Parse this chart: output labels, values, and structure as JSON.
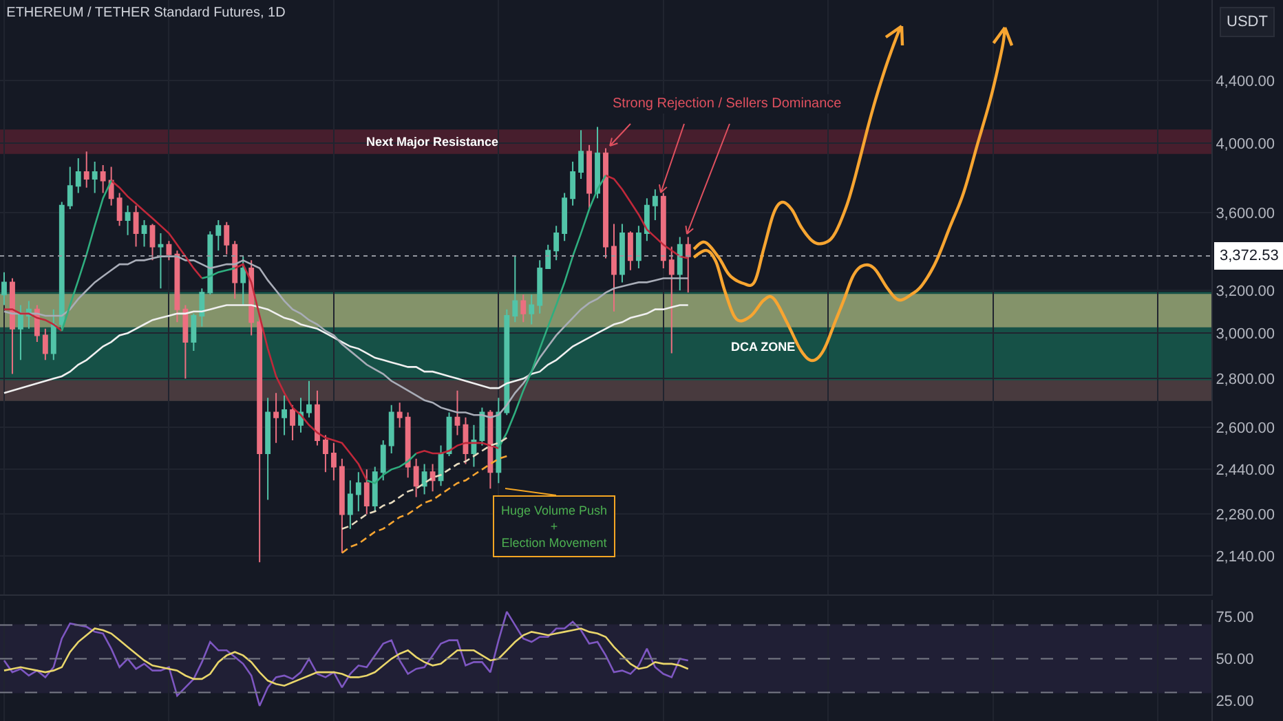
{
  "chart_data": [
    {
      "type": "candlestick",
      "title": "ETHEREUM / TETHER Standard Futures, 1D",
      "ylabel": "USDT",
      "categories": [
        null,
        null,
        null,
        null,
        null,
        null,
        null,
        null,
        null,
        null,
        null,
        null,
        null,
        null,
        null,
        null,
        null,
        null,
        null,
        null,
        null,
        null,
        null,
        null,
        null,
        null,
        null,
        null,
        null,
        null,
        null,
        null,
        null,
        null,
        null,
        null,
        null,
        null,
        null,
        null,
        null,
        null,
        null,
        null,
        null,
        null,
        null,
        null,
        null,
        null,
        null,
        null,
        null,
        null,
        null,
        null,
        null,
        null,
        null,
        null,
        null,
        null,
        null,
        null,
        null,
        null,
        null,
        null,
        null,
        null,
        null,
        null,
        null,
        null,
        null,
        null,
        null,
        null,
        null,
        null,
        null,
        null,
        null,
        null,
        null,
        null,
        null,
        null,
        null,
        null,
        null,
        null,
        null,
        null,
        null,
        null,
        null,
        null,
        null,
        null,
        null,
        null,
        null,
        null,
        null,
        null,
        null,
        null,
        null,
        null,
        null,
        null,
        null,
        null,
        null,
        null,
        null,
        null,
        null,
        null,
        null,
        null,
        null,
        null,
        null,
        null,
        null,
        null,
        null,
        null,
        null,
        null,
        null,
        null,
        null,
        null,
        null,
        null,
        null,
        null,
        null,
        null,
        null,
        null,
        null,
        null,
        null
      ],
      "ohlc": [
        [
          3180,
          3290,
          3130,
          3240
        ],
        [
          3240,
          3260,
          2820,
          3020
        ],
        [
          3020,
          3130,
          2880,
          3090
        ],
        [
          3080,
          3150,
          3020,
          3110
        ],
        [
          3110,
          3130,
          2960,
          2990
        ],
        [
          2990,
          3020,
          2880,
          2910
        ],
        [
          2910,
          3110,
          2880,
          3040
        ],
        [
          3040,
          3660,
          3020,
          3640
        ],
        [
          3640,
          3860,
          3620,
          3750
        ],
        [
          3750,
          3910,
          3710,
          3830
        ],
        [
          3830,
          3950,
          3740,
          3790
        ],
        [
          3790,
          3890,
          3710,
          3830
        ],
        [
          3830,
          3870,
          3710,
          3780
        ],
        [
          3780,
          3860,
          3640,
          3680
        ],
        [
          3680,
          3710,
          3530,
          3560
        ],
        [
          3560,
          3640,
          3480,
          3600
        ],
        [
          3600,
          3640,
          3420,
          3490
        ],
        [
          3490,
          3560,
          3420,
          3530
        ],
        [
          3530,
          3540,
          3350,
          3420
        ],
        [
          3420,
          3490,
          3210,
          3430
        ],
        [
          3430,
          3450,
          3350,
          3380
        ],
        [
          3380,
          3400,
          3050,
          3110
        ],
        [
          3110,
          3130,
          2800,
          2960
        ],
        [
          2960,
          3090,
          2920,
          3080
        ],
        [
          3080,
          3210,
          3030,
          3190
        ],
        [
          3190,
          3500,
          3180,
          3480
        ],
        [
          3480,
          3560,
          3400,
          3530
        ],
        [
          3530,
          3550,
          3380,
          3430
        ],
        [
          3430,
          3450,
          3160,
          3240
        ],
        [
          3240,
          3370,
          3130,
          3310
        ],
        [
          3310,
          3350,
          2990,
          3050
        ],
        [
          3050,
          3080,
          2120,
          2500
        ],
        [
          2500,
          2720,
          2330,
          2660
        ],
        [
          2660,
          2740,
          2540,
          2640
        ],
        [
          2640,
          2730,
          2570,
          2670
        ],
        [
          2670,
          2690,
          2550,
          2610
        ],
        [
          2610,
          2720,
          2580,
          2660
        ],
        [
          2660,
          2790,
          2640,
          2690
        ],
        [
          2690,
          2750,
          2530,
          2550
        ],
        [
          2550,
          2570,
          2430,
          2500
        ],
        [
          2500,
          2540,
          2400,
          2450
        ],
        [
          2450,
          2480,
          2150,
          2280
        ],
        [
          2280,
          2400,
          2230,
          2350
        ],
        [
          2350,
          2430,
          2290,
          2390
        ],
        [
          2390,
          2440,
          2280,
          2310
        ],
        [
          2310,
          2450,
          2290,
          2430
        ],
        [
          2430,
          2550,
          2400,
          2530
        ],
        [
          2530,
          2690,
          2500,
          2660
        ],
        [
          2660,
          2700,
          2600,
          2640
        ],
        [
          2640,
          2660,
          2410,
          2450
        ],
        [
          2450,
          2480,
          2340,
          2380
        ],
        [
          2380,
          2460,
          2350,
          2430
        ],
        [
          2430,
          2460,
          2360,
          2400
        ],
        [
          2400,
          2530,
          2380,
          2500
        ],
        [
          2500,
          2660,
          2490,
          2640
        ],
        [
          2640,
          2750,
          2570,
          2610
        ],
        [
          2610,
          2640,
          2460,
          2500
        ],
        [
          2500,
          2610,
          2450,
          2550
        ],
        [
          2550,
          2680,
          2530,
          2660
        ],
        [
          2660,
          2670,
          2370,
          2430
        ],
        [
          2430,
          2720,
          2390,
          2660
        ],
        [
          2660,
          3110,
          2650,
          3080
        ],
        [
          3080,
          3370,
          3050,
          3150
        ],
        [
          3150,
          3180,
          3050,
          3090
        ],
        [
          3090,
          3180,
          3040,
          3130
        ],
        [
          3130,
          3350,
          3090,
          3310
        ],
        [
          3310,
          3430,
          3310,
          3400
        ],
        [
          3400,
          3530,
          3350,
          3490
        ],
        [
          3490,
          3710,
          3450,
          3680
        ],
        [
          3680,
          3890,
          3640,
          3830
        ],
        [
          3830,
          4080,
          3790,
          3950
        ],
        [
          3950,
          3990,
          3620,
          3710
        ],
        [
          3710,
          4100,
          3680,
          3940
        ],
        [
          3940,
          3970,
          3360,
          3420
        ],
        [
          3420,
          3540,
          3100,
          3280
        ],
        [
          3280,
          3540,
          3240,
          3490
        ],
        [
          3490,
          3500,
          3300,
          3350
        ],
        [
          3350,
          3530,
          3310,
          3490
        ],
        [
          3490,
          3680,
          3450,
          3640
        ],
        [
          3640,
          3730,
          3560,
          3690
        ],
        [
          3690,
          3710,
          3310,
          3350
        ],
        [
          3350,
          3420,
          2910,
          3280
        ],
        [
          3280,
          3470,
          3200,
          3430
        ],
        [
          3430,
          3470,
          3190,
          3370
        ],
        null,
        null,
        null,
        null,
        null,
        null,
        null,
        null,
        null,
        null,
        null,
        null,
        null,
        null,
        null,
        null,
        null,
        null,
        null,
        null,
        null,
        null,
        null,
        null,
        null,
        null,
        null,
        null,
        null,
        null,
        null,
        null,
        null,
        null,
        null,
        null,
        null,
        null,
        null,
        null,
        null,
        null,
        null,
        null,
        null,
        null,
        null,
        null,
        null,
        null,
        null,
        null,
        null,
        null,
        null,
        null,
        null,
        null,
        null,
        null,
        null,
        null,
        null
      ],
      "colors": [
        "#52c4a8",
        "#ec6f80",
        "#52c4a8",
        "#52c4a8",
        "#ec6f80",
        "#ec6f80",
        "#52c4a8",
        "#52c4a8",
        "#52c4a8",
        "#52c4a8",
        "#ec6f80",
        "#52c4a8",
        "#ec6f80",
        "#ec6f80",
        "#ec6f80",
        "#52c4a8",
        "#ec6f80",
        "#52c4a8",
        "#ec6f80",
        "#52c4a8",
        "#ec6f80",
        "#ec6f80",
        "#ec6f80",
        "#52c4a8",
        "#52c4a8",
        "#52c4a8",
        "#52c4a8",
        "#ec6f80",
        "#ec6f80",
        "#52c4a8",
        "#ec6f80",
        "#ec6f80",
        "#52c4a8",
        "#ec6f80",
        "#52c4a8",
        "#ec6f80",
        "#52c4a8",
        "#52c4a8",
        "#ec6f80",
        "#ec6f80",
        "#ec6f80",
        "#ec6f80",
        "#52c4a8",
        "#52c4a8",
        "#ec6f80",
        "#52c4a8",
        "#52c4a8",
        "#52c4a8",
        "#ec6f80",
        "#ec6f80",
        "#ec6f80",
        "#52c4a8",
        "#ec6f80",
        "#52c4a8",
        "#52c4a8",
        "#ec6f80",
        "#ec6f80",
        "#52c4a8",
        "#52c4a8",
        "#ec6f80",
        "#52c4a8",
        "#52c4a8",
        "#52c4a8",
        "#ec6f80",
        "#52c4a8",
        "#52c4a8",
        "#52c4a8",
        "#52c4a8",
        "#52c4a8",
        "#52c4a8",
        "#52c4a8",
        "#ec6f80",
        "#52c4a8",
        "#ec6f80",
        "#ec6f80",
        "#52c4a8",
        "#ec6f80",
        "#52c4a8",
        "#52c4a8",
        "#52c4a8",
        "#ec6f80",
        "#ec6f80",
        "#52c4a8",
        "#ec6f80",
        null,
        null,
        null,
        null,
        null,
        null,
        null,
        null,
        null,
        null,
        null,
        null,
        null,
        null,
        null,
        null,
        null,
        null,
        null,
        null,
        null,
        null,
        null,
        null,
        null,
        null,
        null,
        null,
        null,
        null,
        null,
        null,
        null,
        null,
        null,
        null,
        null,
        null,
        null,
        null,
        null,
        null,
        null,
        null,
        null,
        null,
        null,
        null,
        null,
        null,
        null,
        null,
        null,
        null,
        null,
        null,
        null,
        null,
        null,
        null,
        null,
        null,
        null
      ],
      "series": [
        {
          "type": "line",
          "color": "#f0f0f0",
          "values": [
            2740,
            2750,
            2760,
            2770,
            2780,
            2790,
            2800,
            2810,
            2830,
            2860,
            2880,
            2910,
            2940,
            2960,
            2990,
            3000,
            3020,
            3040,
            3060,
            3070,
            3080,
            3090,
            3090,
            3100,
            3100,
            3110,
            3120,
            3130,
            3130,
            3130,
            3130,
            3120,
            3110,
            3090,
            3070,
            3060,
            3040,
            3030,
            3020,
            3000,
            2980,
            2960,
            2940,
            2930,
            2910,
            2890,
            2880,
            2870,
            2860,
            2850,
            2850,
            2830,
            2830,
            2820,
            2810,
            2800,
            2790,
            2780,
            2770,
            2760,
            2760,
            2780,
            2790,
            2800,
            2820,
            2830,
            2860,
            2880,
            2910,
            2940,
            2960,
            2980,
            3000,
            3020,
            3040,
            3050,
            3070,
            3080,
            3090,
            3110,
            3110,
            3120,
            3130,
            3130,
            null,
            null,
            null,
            null,
            null,
            null,
            null,
            null,
            null,
            null,
            null,
            null,
            null,
            null,
            null,
            null,
            null,
            null,
            null,
            null,
            null,
            null,
            null,
            null,
            null,
            null,
            null,
            null,
            null,
            null,
            null,
            null,
            null,
            null,
            null,
            null,
            null,
            null,
            null,
            null,
            null,
            null,
            null,
            null,
            null,
            null,
            null,
            null,
            null,
            null,
            null,
            null,
            null,
            null,
            null,
            null,
            null,
            null,
            null,
            null,
            null,
            null,
            null
          ]
        },
        {
          "type": "line",
          "color": "#a9adb8",
          "values": [
            3100,
            3090,
            3090,
            3090,
            3090,
            3080,
            3080,
            3080,
            3110,
            3160,
            3200,
            3240,
            3270,
            3300,
            3330,
            3330,
            3350,
            3350,
            3360,
            3370,
            3370,
            3370,
            3350,
            3350,
            3330,
            3310,
            3320,
            3330,
            3330,
            3350,
            3330,
            3310,
            3250,
            3200,
            3150,
            3110,
            3090,
            3060,
            3040,
            3010,
            2990,
            2950,
            2920,
            2890,
            2860,
            2840,
            2820,
            2790,
            2770,
            2750,
            2730,
            2710,
            2700,
            2680,
            2670,
            2660,
            2660,
            2650,
            2650,
            2640,
            2650,
            2690,
            2740,
            2780,
            2830,
            2890,
            2940,
            2990,
            3030,
            3070,
            3110,
            3140,
            3160,
            3190,
            3210,
            3220,
            3230,
            3240,
            3240,
            3250,
            3260,
            3260,
            3260,
            3260,
            null,
            null,
            null,
            null,
            null,
            null,
            null,
            null,
            null,
            null,
            null,
            null,
            null,
            null,
            null,
            null,
            null,
            null,
            null,
            null,
            null,
            null,
            null,
            null,
            null,
            null,
            null,
            null,
            null,
            null,
            null,
            null,
            null,
            null,
            null,
            null,
            null,
            null,
            null,
            null,
            null,
            null,
            null,
            null,
            null,
            null,
            null,
            null,
            null,
            null,
            null,
            null,
            null,
            null,
            null,
            null,
            null,
            null,
            null,
            null,
            null,
            null,
            null
          ]
        },
        {
          "type": "line",
          "color": "#c0283a",
          "values": [
            3110,
            3110,
            3090,
            3090,
            3070,
            3060,
            3040,
            3010,
            null,
            null,
            null,
            null,
            null,
            3780,
            3740,
            3690,
            3650,
            3610,
            3570,
            3530,
            3490,
            3430,
            3370,
            3310,
            3260,
            null,
            null,
            null,
            3310,
            3330,
            3240,
            3080,
            2930,
            2810,
            2740,
            2680,
            2650,
            2610,
            2580,
            2560,
            2550,
            2540,
            2500,
            2460,
            2400,
            null,
            null,
            null,
            null,
            null,
            2500,
            2510,
            2500,
            2500,
            2510,
            2530,
            2540,
            2540,
            2540,
            2530,
            2520,
            null,
            null,
            null,
            null,
            null,
            null,
            null,
            null,
            null,
            null,
            null,
            null,
            3810,
            3790,
            3730,
            3660,
            3590,
            3510,
            3470,
            3430,
            3400,
            3370,
            3360,
            null,
            null,
            null,
            null,
            null,
            null,
            null,
            null,
            null,
            null,
            null,
            null,
            null,
            null,
            null,
            null,
            null,
            null,
            null,
            null,
            null,
            null,
            null,
            null,
            null,
            null,
            null,
            null,
            null,
            null,
            null,
            null,
            null,
            null,
            null,
            null,
            null,
            null,
            null,
            null,
            null,
            null,
            null,
            null,
            null,
            null,
            null,
            null,
            null,
            null,
            null,
            null,
            null,
            null,
            null,
            null,
            null,
            null,
            null,
            null,
            null,
            null,
            null
          ]
        },
        {
          "type": "line",
          "color": "#2fae7f",
          "values": [
            null,
            null,
            null,
            null,
            null,
            null,
            null,
            3010,
            3130,
            3250,
            3380,
            3530,
            3680,
            3780,
            null,
            null,
            null,
            null,
            null,
            null,
            null,
            null,
            null,
            null,
            3260,
            3270,
            3290,
            3300,
            3310,
            null,
            null,
            null,
            null,
            null,
            null,
            null,
            null,
            null,
            null,
            null,
            null,
            null,
            null,
            null,
            2400,
            2390,
            2420,
            2440,
            2450,
            2470,
            2500,
            null,
            null,
            null,
            null,
            null,
            null,
            null,
            null,
            null,
            2520,
            2580,
            2660,
            2750,
            2830,
            2930,
            3030,
            3130,
            3240,
            3370,
            3490,
            3620,
            3730,
            3810,
            null,
            null,
            null,
            null,
            null,
            null,
            null,
            null,
            null,
            null,
            null,
            null,
            null,
            null,
            null,
            null,
            null,
            null,
            null,
            null,
            null,
            null,
            null,
            null,
            null,
            null,
            null,
            null,
            null,
            null,
            null,
            null,
            null,
            null,
            null,
            null,
            null,
            null,
            null,
            null,
            null,
            null,
            null,
            null,
            null,
            null,
            null,
            null,
            null,
            null,
            null,
            null,
            null,
            null,
            null,
            null,
            null,
            null,
            null,
            null,
            null,
            null,
            null,
            null,
            null,
            null,
            null,
            null,
            null,
            null,
            null,
            null,
            null
          ]
        },
        {
          "type": "line",
          "color": "#e8dcc0",
          "line_style": "dashed",
          "values": [
            null,
            null,
            null,
            null,
            null,
            null,
            null,
            null,
            null,
            null,
            null,
            null,
            null,
            null,
            null,
            null,
            null,
            null,
            null,
            null,
            null,
            null,
            null,
            null,
            null,
            null,
            null,
            null,
            null,
            null,
            null,
            null,
            null,
            null,
            null,
            null,
            null,
            null,
            null,
            null,
            null,
            2230,
            2240,
            2260,
            2280,
            2290,
            2310,
            2320,
            2340,
            2360,
            2370,
            2390,
            2410,
            2420,
            2440,
            2460,
            2470,
            2490,
            2510,
            2530,
            2540,
            2560,
            null,
            null,
            null,
            null,
            null,
            null,
            null,
            null,
            null,
            null,
            null,
            null,
            null,
            null,
            null,
            null,
            null,
            null,
            null,
            null,
            null,
            null,
            null,
            null,
            null,
            null,
            null,
            null,
            null,
            null,
            null,
            null,
            null,
            null,
            null,
            null,
            null,
            null,
            null,
            null,
            null,
            null,
            null,
            null,
            null,
            null,
            null,
            null,
            null,
            null,
            null,
            null,
            null,
            null,
            null,
            null,
            null,
            null,
            null,
            null,
            null,
            null,
            null,
            null,
            null,
            null,
            null,
            null,
            null,
            null,
            null,
            null,
            null,
            null,
            null,
            null,
            null,
            null,
            null,
            null,
            null,
            null,
            null,
            null,
            null
          ]
        },
        {
          "type": "line",
          "color": "#f7a531",
          "line_style": "dashed",
          "values": [
            null,
            null,
            null,
            null,
            null,
            null,
            null,
            null,
            null,
            null,
            null,
            null,
            null,
            null,
            null,
            null,
            null,
            null,
            null,
            null,
            null,
            null,
            null,
            null,
            null,
            null,
            null,
            null,
            null,
            null,
            null,
            null,
            null,
            null,
            null,
            null,
            null,
            null,
            null,
            null,
            null,
            2150,
            2170,
            2180,
            2200,
            2220,
            2230,
            2250,
            2270,
            2280,
            2300,
            2320,
            2330,
            2350,
            2370,
            2390,
            2400,
            2420,
            2440,
            2460,
            2480,
            2490,
            null,
            null,
            null,
            null,
            null,
            null,
            null,
            null,
            null,
            null,
            null,
            null,
            null,
            null,
            null,
            null,
            null,
            null,
            null,
            null,
            null,
            null,
            null,
            null,
            null,
            null,
            null,
            null,
            null,
            null,
            null,
            null,
            null,
            null,
            null,
            null,
            null,
            null,
            null,
            null,
            null,
            null,
            null,
            null,
            null,
            null,
            null,
            null,
            null,
            null,
            null,
            null,
            null,
            null,
            null,
            null,
            null,
            null,
            null,
            null,
            null,
            null,
            null,
            null,
            null,
            null,
            null,
            null,
            null,
            null,
            null,
            null,
            null,
            null,
            null,
            null,
            null,
            null,
            null,
            null,
            null,
            null,
            null,
            null,
            null
          ]
        }
      ],
      "log": "y",
      "ylim": [
        2020,
        4970
      ],
      "yticks": [
        {
          "value": 2140,
          "label": "2,140.00"
        },
        {
          "value": 2280,
          "label": "2,280.00"
        },
        {
          "value": 2440,
          "label": "2,440.00"
        },
        {
          "value": 2600,
          "label": "2,600.00"
        },
        {
          "value": 2800,
          "label": "2,800.00"
        },
        {
          "value": 3000,
          "label": "3,000.00"
        },
        {
          "value": 3200,
          "label": "3,200.00"
        },
        {
          "value": 3600,
          "label": "3,600.00"
        },
        {
          "value": 4000,
          "label": "4,000.00"
        },
        {
          "value": 4400,
          "label": "4,400.00"
        }
      ],
      "ref_lines": [
        {
          "axis": "y",
          "value": 3372.53,
          "label": "3,372.53",
          "line_style": "dotted",
          "color": "#9598a1"
        }
      ],
      "bands": [
        {
          "axis": "y",
          "from": 3940,
          "to": 4080,
          "label": "Next Major Resistance",
          "color": "#7a2436"
        },
        {
          "axis": "y",
          "from": 2710,
          "to": 3190,
          "label": "DCA ZONE",
          "color": "#178a6b"
        },
        {
          "axis": "y",
          "from": 3030,
          "to": 3180,
          "color": "#f2d48e"
        },
        {
          "axis": "y",
          "from": 2710,
          "to": 2790,
          "color": "#7a2436"
        }
      ],
      "annotations": [
        "Strong Rejection / Sellers Dominance",
        "Huge Volume Push\n+\nElection Movement"
      ],
      "grid": true,
      "tick_labels": "y"
    },
    {
      "type": "line",
      "categories": [
        null,
        null,
        null,
        null,
        null,
        null,
        null,
        null,
        null,
        null,
        null,
        null,
        null,
        null,
        null,
        null,
        null,
        null,
        null,
        null,
        null,
        null,
        null,
        null,
        null,
        null,
        null,
        null,
        null,
        null,
        null,
        null,
        null,
        null,
        null,
        null,
        null,
        null,
        null,
        null,
        null,
        null,
        null,
        null,
        null,
        null,
        null,
        null,
        null,
        null,
        null,
        null,
        null,
        null,
        null,
        null,
        null,
        null,
        null,
        null,
        null,
        null,
        null,
        null,
        null,
        null,
        null,
        null,
        null,
        null,
        null,
        null,
        null,
        null,
        null,
        null,
        null,
        null,
        null,
        null,
        null,
        null,
        null,
        null,
        null,
        null,
        null,
        null,
        null,
        null,
        null,
        null,
        null,
        null,
        null,
        null,
        null,
        null,
        null,
        null,
        null,
        null,
        null,
        null,
        null,
        null,
        null,
        null,
        null,
        null,
        null,
        null,
        null,
        null,
        null,
        null,
        null,
        null,
        null,
        null,
        null,
        null,
        null,
        null,
        null,
        null,
        null,
        null,
        null,
        null,
        null,
        null,
        null,
        null,
        null,
        null,
        null,
        null,
        null,
        null,
        null,
        null,
        null,
        null,
        null,
        null,
        null
      ],
      "series": [
        {
          "color": "#7e57c2",
          "values": [
            49,
            42,
            44,
            40,
            43,
            39,
            45,
            62,
            71,
            70,
            69,
            66,
            65,
            56,
            45,
            50,
            44,
            47,
            43,
            43,
            45,
            28,
            33,
            38,
            48,
            60,
            55,
            55,
            51,
            47,
            40,
            22,
            33,
            39,
            40,
            38,
            42,
            50,
            41,
            39,
            42,
            33,
            41,
            46,
            45,
            52,
            59,
            61,
            49,
            41,
            44,
            45,
            52,
            59,
            61,
            61,
            46,
            48,
            48,
            42,
            61,
            78,
            70,
            62,
            60,
            63,
            63,
            68,
            68,
            72,
            67,
            59,
            60,
            52,
            42,
            43,
            41,
            46,
            56,
            45,
            41,
            39,
            50,
            49,
            null,
            null,
            null,
            null,
            null,
            null,
            null,
            null,
            null,
            null,
            null,
            null,
            null,
            null,
            null,
            null,
            null,
            null,
            null,
            null,
            null,
            null,
            null,
            null,
            null,
            null,
            null,
            null,
            null,
            null,
            null,
            null,
            null,
            null,
            null,
            null,
            null,
            null,
            null,
            null,
            null,
            null,
            null,
            null,
            null,
            null,
            null,
            null,
            null,
            null,
            null,
            null,
            null,
            null,
            null,
            null,
            null,
            null,
            null,
            null,
            null,
            null,
            null
          ]
        },
        {
          "color": "#e9d66b",
          "values": [
            43,
            44,
            45,
            44,
            43,
            42,
            43,
            45,
            54,
            60,
            64,
            68,
            67,
            65,
            61,
            57,
            53,
            49,
            46,
            45,
            44,
            43,
            40,
            38,
            38,
            41,
            48,
            52,
            54,
            52,
            48,
            42,
            37,
            35,
            34,
            36,
            38,
            40,
            42,
            42,
            42,
            41,
            39,
            39,
            40,
            42,
            46,
            50,
            53,
            55,
            51,
            48,
            46,
            47,
            51,
            55,
            55,
            55,
            52,
            49,
            50,
            55,
            60,
            64,
            66,
            65,
            64,
            65,
            66,
            67,
            68,
            66,
            65,
            63,
            57,
            52,
            47,
            44,
            45,
            48,
            47,
            47,
            46,
            44,
            null,
            null,
            null,
            null,
            null,
            null,
            null,
            null,
            null,
            null,
            null,
            null,
            null,
            null,
            null,
            null,
            null,
            null,
            null,
            null,
            null,
            null,
            null,
            null,
            null,
            null,
            null,
            null,
            null,
            null,
            null,
            null,
            null,
            null,
            null,
            null,
            null,
            null,
            null,
            null,
            null,
            null,
            null,
            null,
            null,
            null,
            null,
            null,
            null,
            null,
            null,
            null,
            null,
            null,
            null,
            null,
            null,
            null,
            null,
            null,
            null,
            null,
            null
          ]
        }
      ],
      "ylim": [
        13,
        85
      ],
      "yticks": [
        {
          "value": 25,
          "label": "25.00"
        },
        {
          "value": 50,
          "label": "50.00"
        },
        {
          "value": 75,
          "label": "75.00"
        }
      ],
      "ref_lines": [
        {
          "axis": "y",
          "value": 70,
          "line_style": "dashed",
          "color": "#787b86"
        },
        {
          "axis": "y",
          "value": 50,
          "line_style": "dashed",
          "color": "#787b86"
        },
        {
          "axis": "y",
          "value": 30,
          "line_style": "dashed",
          "color": "#787b86"
        }
      ],
      "bands": [
        {
          "axis": "y",
          "from": 30,
          "to": 70,
          "color": "#2b2547"
        }
      ],
      "grid": "x",
      "tick_labels": "y"
    }
  ]
}
